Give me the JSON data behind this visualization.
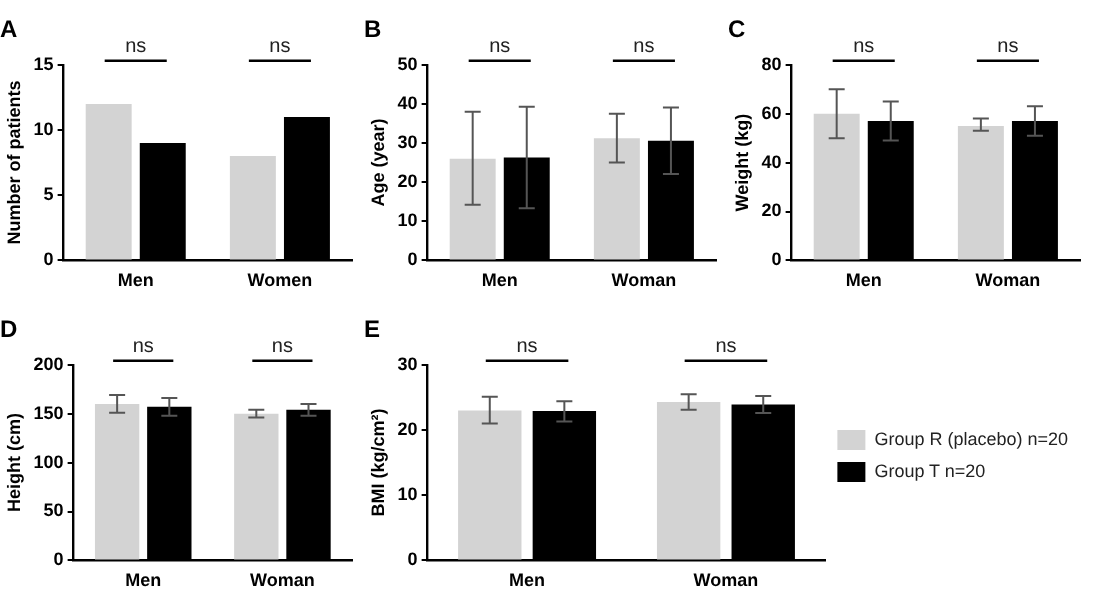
{
  "chart_data": [
    {
      "type": "bar",
      "title": "A",
      "ylabel": "Number of patients",
      "categories": [
        "Men",
        "Women"
      ],
      "series": [
        {
          "color": "#d3d3d3",
          "values": [
            12,
            8
          ]
        },
        {
          "color": "#000000",
          "values": [
            9,
            11
          ]
        }
      ],
      "ylim": [
        0,
        15
      ],
      "yticks": [
        0,
        5,
        10,
        15
      ],
      "grid": false,
      "legend": false,
      "annotations": [
        "ns",
        "ns"
      ]
    },
    {
      "type": "bar",
      "title": "B",
      "ylabel": "Age (year)",
      "categories": [
        "Men",
        "Woman"
      ],
      "series": [
        {
          "color": "#d3d3d3",
          "values": [
            26,
            31.2
          ],
          "errors": [
            [
              14.2,
              38
            ],
            [
              25,
              37.5
            ]
          ]
        },
        {
          "color": "#000000",
          "values": [
            26.3,
            30.6
          ],
          "errors": [
            [
              13.3,
              39.3
            ],
            [
              22.1,
              39.1
            ]
          ]
        }
      ],
      "ylim": [
        0,
        50
      ],
      "yticks": [
        0,
        10,
        20,
        30,
        40,
        50
      ],
      "grid": false,
      "legend": false,
      "annotations": [
        "ns",
        "ns"
      ]
    },
    {
      "type": "bar",
      "title": "C",
      "ylabel": "Weight (kg)",
      "categories": [
        "Men",
        "Woman"
      ],
      "series": [
        {
          "color": "#d3d3d3",
          "values": [
            60,
            55
          ],
          "errors": [
            [
              50,
              70
            ],
            [
              53,
              58
            ]
          ]
        },
        {
          "color": "#000000",
          "values": [
            57,
            57
          ],
          "errors": [
            [
              49,
              65
            ],
            [
              51,
              63
            ]
          ]
        }
      ],
      "ylim": [
        0,
        80
      ],
      "yticks": [
        0,
        20,
        40,
        60,
        80
      ],
      "grid": false,
      "legend": false,
      "annotations": [
        "ns",
        "ns"
      ]
    },
    {
      "type": "bar",
      "title": "D",
      "ylabel": "Height (cm)",
      "categories": [
        "Men",
        "Woman"
      ],
      "series": [
        {
          "color": "#d3d3d3",
          "values": [
            160,
            150
          ],
          "errors": [
            [
              151,
              169
            ],
            [
              146,
              154
            ]
          ]
        },
        {
          "color": "#000000",
          "values": [
            157,
            154
          ],
          "errors": [
            [
              148,
              166
            ],
            [
              148,
              160
            ]
          ]
        }
      ],
      "ylim": [
        0,
        200
      ],
      "yticks": [
        0,
        50,
        100,
        150,
        200
      ],
      "grid": false,
      "legend": false,
      "annotations": [
        "ns",
        "ns"
      ]
    },
    {
      "type": "bar",
      "title": "E",
      "ylabel": "BMI (kg/cm²)",
      "categories": [
        "Men",
        "Woman"
      ],
      "series": [
        {
          "name": "Group R (placebo) n=20",
          "color": "#d3d3d3",
          "values": [
            23,
            24.3
          ],
          "errors": [
            [
              21,
              25.1
            ],
            [
              23.1,
              25.5
            ]
          ]
        },
        {
          "name": "Group T n=20",
          "color": "#000000",
          "values": [
            22.9,
            23.9
          ],
          "errors": [
            [
              21.3,
              24.4
            ],
            [
              22.6,
              25.2
            ]
          ]
        }
      ],
      "ylim": [
        0,
        30
      ],
      "yticks": [
        0,
        10,
        20,
        30
      ],
      "grid": false,
      "legend": "right",
      "annotations": [
        "ns",
        "ns"
      ]
    }
  ]
}
